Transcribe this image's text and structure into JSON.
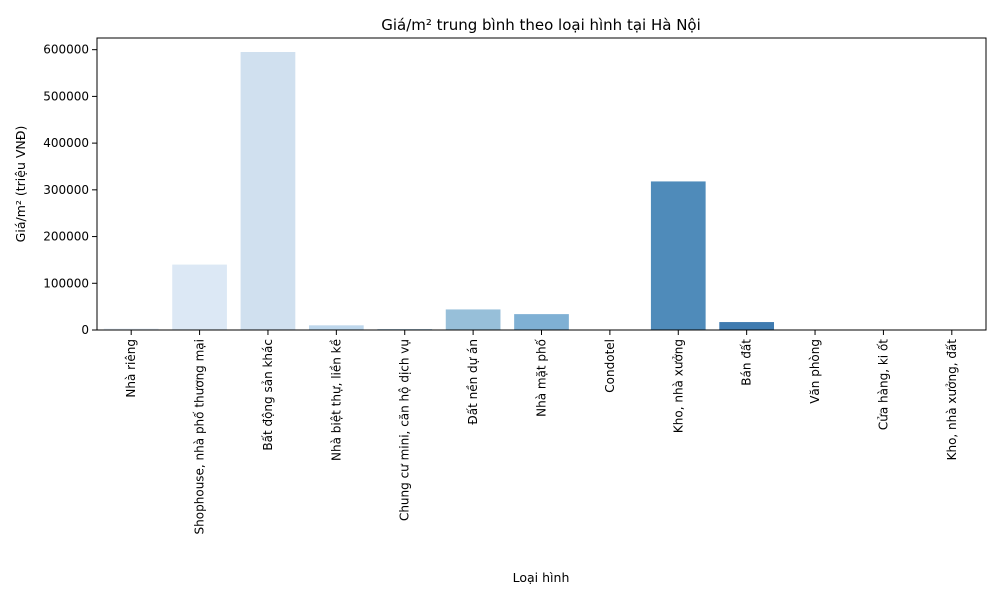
{
  "chart_data": {
    "type": "bar",
    "title": "Giá/m² trung bình theo loại hình tại Hà Nội",
    "xlabel": "Loại hình",
    "ylabel": "Giá/m² (triệu VNĐ)",
    "ylim": [
      0,
      625000
    ],
    "yticks": [
      0,
      100000,
      200000,
      300000,
      400000,
      500000,
      600000
    ],
    "grid": false,
    "legend": "none",
    "categories": [
      "Nhà riêng",
      "Shophouse, nhà phố thương mại",
      "Bất động sản khác",
      "Nhà biệt thự, liền kề",
      "Chung cư mini, căn hộ dịch vụ",
      "Đất nền dự án",
      "Nhà mặt phố",
      "Condotel",
      "Kho, nhà xưởng",
      "Bán đất",
      "Văn phòng",
      "Cửa hàng, ki ốt",
      "Kho, nhà xưởng, đất"
    ],
    "values": [
      3000,
      140000,
      595000,
      10000,
      2000,
      44000,
      34000,
      500,
      318000,
      17000,
      300,
      300,
      300
    ],
    "colors": [
      "#e3eef8",
      "#dce8f5",
      "#d0e0ef",
      "#bed7ec",
      "#aecfe5",
      "#97bfd9",
      "#7fb0d4",
      "#69a3cc",
      "#4f8bba",
      "#3f7bb0",
      "#2f6ca8",
      "#23589a",
      "#1a4a8c"
    ]
  }
}
